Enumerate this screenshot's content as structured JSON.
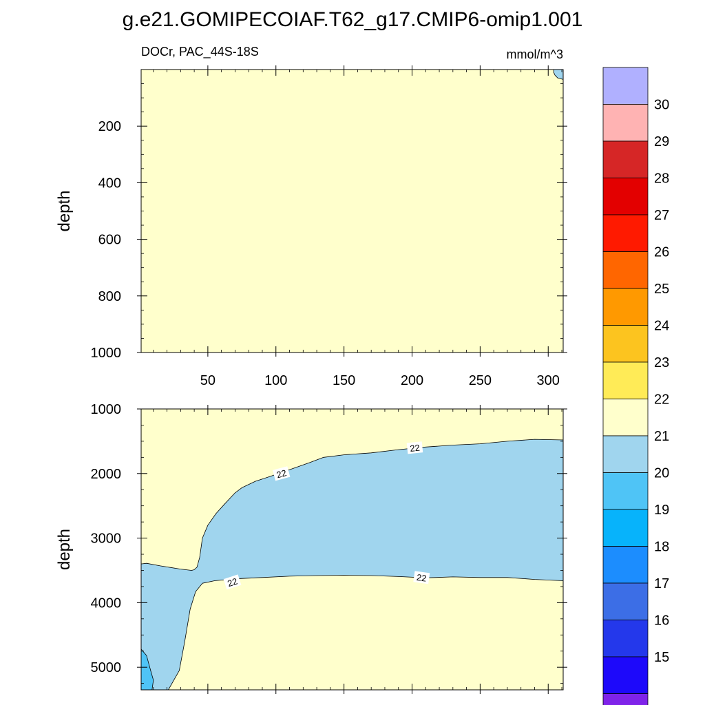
{
  "title": "g.e21.GOMIPECOIAF.T62_g17.CMIP6-omip1.001",
  "subtitle_left": "DOCr, PAC_44S-18S",
  "subtitle_right": "mmol/m^3",
  "colors": {
    "background": "#ffffcc",
    "band_21_22": "#a0d5ee",
    "band_20_21": "#4fc4f6",
    "contour_line": "#000000"
  },
  "chart_data": [
    {
      "type": "contour",
      "panel": "upper",
      "ylabel": "depth",
      "xlim": [
        1,
        311
      ],
      "ylim": [
        1000,
        0
      ],
      "x_ticks": [
        50,
        100,
        150,
        200,
        250,
        300
      ],
      "x_tick_labels": [
        "50",
        "100",
        "150",
        "200",
        "250",
        "300"
      ],
      "y_ticks": [
        200,
        400,
        600,
        800,
        1000
      ],
      "y_tick_labels": [
        "200",
        "400",
        "600",
        "800",
        "1000"
      ],
      "fill_default": "22-23",
      "regions": [
        {
          "band": "21-22",
          "boundary": [
            [
              304,
              0
            ],
            [
              311,
              0
            ],
            [
              311,
              35
            ],
            [
              307,
              30
            ],
            [
              305,
              20
            ],
            [
              304,
              10
            ]
          ]
        }
      ],
      "contour_labels": []
    },
    {
      "type": "contour",
      "panel": "lower",
      "ylabel": "depth",
      "xlim": [
        1,
        311
      ],
      "ylim": [
        5350,
        1000
      ],
      "x_ticks": [
        50,
        100,
        150,
        200,
        250,
        300
      ],
      "y_ticks": [
        1000,
        2000,
        3000,
        4000,
        5000
      ],
      "y_tick_labels": [
        "1000",
        "2000",
        "3000",
        "4000",
        "5000"
      ],
      "fill_default": "22-23",
      "regions": [
        {
          "band": "21-22",
          "boundary": [
            [
              1,
              3400
            ],
            [
              5,
              3390
            ],
            [
              15,
              3430
            ],
            [
              30,
              3480
            ],
            [
              38,
              3500
            ],
            [
              40,
              3490
            ],
            [
              42,
              3450
            ],
            [
              44,
              3300
            ],
            [
              46,
              3000
            ],
            [
              50,
              2800
            ],
            [
              56,
              2620
            ],
            [
              62,
              2480
            ],
            [
              70,
              2300
            ],
            [
              75,
              2220
            ],
            [
              85,
              2120
            ],
            [
              95,
              2050
            ],
            [
              110,
              1940
            ],
            [
              125,
              1830
            ],
            [
              135,
              1750
            ],
            [
              150,
              1710
            ],
            [
              170,
              1680
            ],
            [
              190,
              1630
            ],
            [
              210,
              1590
            ],
            [
              230,
              1560
            ],
            [
              250,
              1540
            ],
            [
              270,
              1500
            ],
            [
              290,
              1470
            ],
            [
              311,
              1480
            ],
            [
              311,
              3660
            ],
            [
              290,
              3640
            ],
            [
              270,
              3610
            ],
            [
              250,
              3610
            ],
            [
              230,
              3600
            ],
            [
              210,
              3615
            ],
            [
              190,
              3595
            ],
            [
              170,
              3580
            ],
            [
              150,
              3575
            ],
            [
              130,
              3580
            ],
            [
              110,
              3590
            ],
            [
              90,
              3610
            ],
            [
              70,
              3630
            ],
            [
              55,
              3660
            ],
            [
              46,
              3700
            ],
            [
              41,
              3830
            ],
            [
              37,
              4100
            ],
            [
              33,
              4600
            ],
            [
              29,
              5050
            ],
            [
              21,
              5350
            ],
            [
              1,
              5350
            ]
          ]
        },
        {
          "band": "20-21",
          "boundary": [
            [
              1,
              4720
            ],
            [
              5,
              4820
            ],
            [
              8,
              5050
            ],
            [
              10,
              5200
            ],
            [
              9,
              5350
            ],
            [
              1,
              5350
            ]
          ]
        }
      ],
      "contour_labels": [
        {
          "text": "22",
          "x": 104,
          "y": 2000,
          "angle": -15
        },
        {
          "text": "22",
          "x": 202,
          "y": 1600,
          "angle": -6
        },
        {
          "text": "22",
          "x": 68,
          "y": 3680,
          "angle": -18
        },
        {
          "text": "22",
          "x": 207,
          "y": 3610,
          "angle": 8
        }
      ]
    }
  ],
  "colorbar": {
    "colors": [
      "#b0b0ff",
      "#ffb3b3",
      "#d62626",
      "#e30000",
      "#ff1a00",
      "#ff6600",
      "#ff9900",
      "#fcc41f",
      "#ffeb57",
      "#ffffcc",
      "#a0d5ee",
      "#4fc4f6",
      "#07b3fb",
      "#1c8dfe",
      "#3c6ee6",
      "#2438eb",
      "#1d09fa",
      "#7f23e9"
    ],
    "tick_labels": [
      "30",
      "29",
      "28",
      "27",
      "26",
      "25",
      "24",
      "23",
      "22",
      "21",
      "20",
      "19",
      "18",
      "17",
      "16",
      "15"
    ]
  }
}
